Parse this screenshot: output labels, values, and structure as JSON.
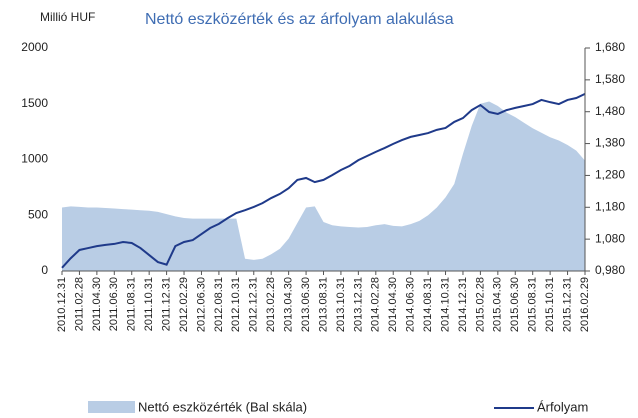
{
  "chart_data": {
    "type": "area-line",
    "title": "Nettó eszközérték és az árfolyam alakulása",
    "y_label": "Millió HUF",
    "categories": [
      "2010.12.31",
      null,
      "2011.02.28",
      null,
      "2011.04.30",
      null,
      "2011.06.30",
      null,
      "2011.08.31",
      null,
      "2011.10.31",
      null,
      "2011.12.31",
      null,
      "2012.02.29",
      null,
      "2012.06.30",
      null,
      "2012.08.31",
      null,
      "2012.10.31",
      null,
      "2012.12.31",
      null,
      "2013.02.28",
      null,
      "2013.04.30",
      null,
      "2013.06.30",
      null,
      "2013.08.31",
      null,
      "2013.10.31",
      null,
      "2013.12.31",
      null,
      "2014.02.28",
      null,
      "2014.04.30",
      null,
      "2014.06.30",
      null,
      "2014.08.31",
      null,
      "2014.10.31",
      null,
      "2014.12.31",
      null,
      "2015.02.28",
      null,
      "2015.04.30",
      null,
      "2015.06.30",
      null,
      "2015.08.31",
      null,
      "2015.10.31",
      null,
      "2015.12.31",
      null,
      "2016.02.29"
    ],
    "series": [
      {
        "name": "Nettó eszközérték (Bal skála)",
        "color": "#b9cde5",
        "kind": "area",
        "values": [
          570,
          580,
          575,
          570,
          570,
          565,
          560,
          555,
          550,
          545,
          540,
          530,
          510,
          490,
          475,
          470,
          470,
          470,
          470,
          470,
          470,
          110,
          100,
          110,
          150,
          200,
          290,
          430,
          570,
          580,
          440,
          410,
          400,
          395,
          390,
          395,
          410,
          420,
          405,
          400,
          420,
          450,
          500,
          570,
          660,
          780,
          1050,
          1300,
          1500,
          1520,
          1480,
          1420,
          1380,
          1330,
          1280,
          1240,
          1200,
          1170,
          1130,
          1080,
          990
        ]
      },
      {
        "name": "Árfolyam",
        "color": "#1f3a8a",
        "kind": "line",
        "axis": "y2",
        "values": [
          0.99,
          1.02,
          1.046,
          1.052,
          1.058,
          1.062,
          1.065,
          1.071,
          1.068,
          1.052,
          1.03,
          1.008,
          1.0,
          1.058,
          1.071,
          1.077,
          1.096,
          1.115,
          1.128,
          1.146,
          1.162,
          1.171,
          1.181,
          1.193,
          1.209,
          1.222,
          1.24,
          1.266,
          1.272,
          1.259,
          1.266,
          1.281,
          1.297,
          1.31,
          1.328,
          1.341,
          1.354,
          1.366,
          1.379,
          1.391,
          1.401,
          1.407,
          1.413,
          1.423,
          1.429,
          1.448,
          1.46,
          1.485,
          1.501,
          1.479,
          1.473,
          1.485,
          1.492,
          1.498,
          1.504,
          1.517,
          1.51,
          1.504,
          1.517,
          1.523,
          1.536
        ]
      }
    ],
    "ylim": [
      0,
      2000
    ],
    "yticks": [
      0,
      500,
      1000,
      1500,
      2000
    ],
    "y2lim": [
      0.98,
      1.68
    ],
    "y2ticks": [
      {
        "value": 0.98,
        "label": "0,980"
      },
      {
        "value": 1.08,
        "label": "1,080"
      },
      {
        "value": 1.18,
        "label": "1,180"
      },
      {
        "value": 1.28,
        "label": "1,280"
      },
      {
        "value": 1.38,
        "label": "1,380"
      },
      {
        "value": 1.48,
        "label": "1,480"
      },
      {
        "value": 1.58,
        "label": "1,580"
      },
      {
        "value": 1.68,
        "label": "1,680"
      }
    ],
    "grid": false,
    "legend": "bottom"
  }
}
